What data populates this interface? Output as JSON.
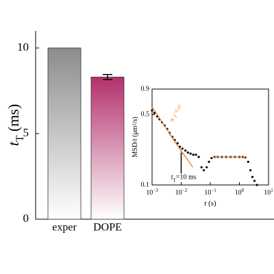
{
  "chart_data": [
    {
      "type": "bar",
      "ylabel": [
        {
          "text": "t",
          "italic": true
        },
        {
          "text": "T",
          "sub": true
        },
        {
          "text": " (ms)"
        }
      ],
      "categories": [
        "exper",
        "DOPE"
      ],
      "values": [
        10,
        8.3
      ],
      "errors": [
        null,
        0.15
      ],
      "colors": [
        "#8c8c8c",
        "#b3306c"
      ],
      "ylim": [
        0,
        11
      ],
      "yticks": [
        0,
        5,
        10
      ]
    },
    {
      "type": "scatter",
      "xscale": "log",
      "yscale": "log",
      "xlabel": [
        {
          "text": "t",
          "italic": true
        },
        {
          "text": " (s)"
        }
      ],
      "ylabel": [
        {
          "text": "MSD/"
        },
        {
          "text": "t",
          "italic": true
        },
        {
          "text": " (μm²/s)"
        }
      ],
      "xlim": [
        0.001,
        10
      ],
      "ylim": [
        0.1,
        0.9
      ],
      "xticks": [
        {
          "value": 0.001,
          "label": "10",
          "exponent": "−3"
        },
        {
          "value": 0.01,
          "label": "10",
          "exponent": "−2"
        },
        {
          "value": 0.1,
          "label": "10",
          "exponent": "−1"
        },
        {
          "value": 1,
          "label": "10",
          "exponent": "0"
        },
        {
          "value": 10,
          "label": "10",
          "exponent": "1"
        }
      ],
      "yticks": [
        0.1,
        0.5,
        0.9
      ],
      "series": [
        {
          "color": "#000000",
          "x": [
            0.001,
            0.0012,
            0.0015,
            0.0018,
            0.0022,
            0.0027,
            0.0033,
            0.004,
            0.005,
            0.006,
            0.0075,
            0.009,
            0.011,
            0.014,
            0.017,
            0.021,
            0.026,
            0.032,
            0.04,
            0.05,
            0.06,
            0.075,
            0.09,
            0.11,
            0.14,
            0.18,
            0.25,
            0.35,
            0.5,
            0.7,
            1,
            1.3,
            1.6,
            2,
            2.4,
            2.8,
            3.3,
            4
          ],
          "values": [
            0.55,
            0.52,
            0.48,
            0.45,
            0.42,
            0.39,
            0.36,
            0.33,
            0.3,
            0.28,
            0.26,
            0.24,
            0.23,
            0.22,
            0.21,
            0.205,
            0.2,
            0.2,
            0.19,
            0.15,
            0.14,
            0.15,
            0.17,
            0.185,
            0.19,
            0.19,
            0.19,
            0.19,
            0.19,
            0.19,
            0.19,
            0.19,
            0.188,
            0.17,
            0.14,
            0.12,
            0.11,
            0.1
          ]
        }
      ],
      "fits": [
        {
          "color": "#e8833a",
          "x": [
            0.001,
            0.012
          ],
          "values": [
            0.6,
            0.2
          ]
        },
        {
          "color": "#e8833a",
          "x": [
            0.004,
            0.025
          ],
          "values": [
            0.32,
            0.15
          ]
        },
        {
          "color": "#e8833a",
          "x": [
            0.12,
            1.8
          ],
          "values": [
            0.19,
            0.19
          ]
        }
      ],
      "arrow": {
        "x": 0.01,
        "values": [
          0.13,
          0.21
        ]
      },
      "annotations": [
        {
          "parts": [
            {
              "text": "∝ "
            },
            {
              "text": "t",
              "italic": true
            },
            {
              "text": "−0.47",
              "sup": true
            }
          ],
          "x": 0.0045,
          "y": 0.42,
          "angle": -52,
          "color": "#e8833a"
        },
        {
          "parts": [
            {
              "text": "t",
              "italic": true
            },
            {
              "text": "T",
              "sub": true
            },
            {
              "text": "=10 ms"
            }
          ],
          "x": 0.0045,
          "y": 0.118,
          "angle": 0,
          "color": "#000000"
        }
      ]
    }
  ]
}
